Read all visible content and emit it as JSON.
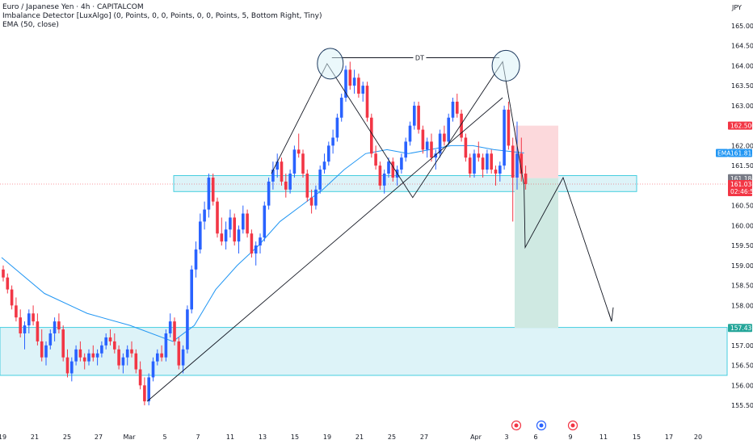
{
  "header": {
    "title": "Euro / Japanese Yen · 4h · CAPITALCOM",
    "indicator_1": "Imbalance Detector [LuxAlgo] (0, Points, 0, 0, Points, 0, 0, Points, 5, Bottom Right, Tiny)",
    "indicator_2": "EMA (50, close)"
  },
  "currency": "JPY",
  "colors": {
    "bull": "#2962ff",
    "bear": "#f23645",
    "ema": "#2196f3",
    "zone_fill": "#d8f1f7",
    "zone_stroke": "#26c6da",
    "stop_fill": "#fcd9dc",
    "target_fill": "#cfe9e2",
    "line": "#131722"
  },
  "chart_data": {
    "type": "candlestick",
    "title": "Euro / Japanese Yen · 4h · CAPITALCOM",
    "ylim": [
      155.3,
      165.2
    ],
    "y_ticks": [
      "165.000",
      "164.500",
      "164.000",
      "163.500",
      "163.000",
      "162.000",
      "161.500",
      "160.500",
      "160.000",
      "159.500",
      "159.000",
      "158.500",
      "158.000",
      "157.000",
      "156.500",
      "156.000",
      "155.500"
    ],
    "x_ticks": [
      "19",
      "21",
      "25",
      "27",
      "Mar",
      "5",
      "7",
      "11",
      "13",
      "15",
      "19",
      "21",
      "25",
      "27",
      "Apr",
      "3",
      "6",
      "9",
      "11",
      "15",
      "17",
      "20"
    ],
    "grid": false,
    "price_labels": [
      {
        "text": "162.500",
        "value": 162.5,
        "color": "#f23645"
      },
      {
        "text": "161.815",
        "value": 161.815,
        "color": "#2196f3",
        "tag": "EMA"
      },
      {
        "text": "161.184",
        "value": 161.184,
        "color": "#787b86"
      },
      {
        "text": "161.038",
        "value": 161.038,
        "color": "#f23645",
        "sub": "02:46:51"
      },
      {
        "text": "157.437",
        "value": 157.437,
        "color": "#26a69a"
      }
    ],
    "zones": [
      {
        "name": "resistance-support-zone",
        "from": 160.85,
        "to": 161.25
      },
      {
        "name": "demand-zone",
        "from": 156.25,
        "to": 157.45
      }
    ],
    "position": {
      "entry": 161.184,
      "stop": 162.5,
      "target": 157.437
    },
    "annotations": [
      {
        "text": "DT",
        "type": "double-top"
      }
    ],
    "candles": [
      [
        158.9,
        159.0,
        158.6,
        158.7
      ],
      [
        158.7,
        158.8,
        158.3,
        158.4
      ],
      [
        158.4,
        158.5,
        157.9,
        158.0
      ],
      [
        158.0,
        158.2,
        157.6,
        157.7
      ],
      [
        157.7,
        157.9,
        157.2,
        157.3
      ],
      [
        157.3,
        157.6,
        156.9,
        157.5
      ],
      [
        157.5,
        157.9,
        157.3,
        157.8
      ],
      [
        157.8,
        158.0,
        157.5,
        157.6
      ],
      [
        157.6,
        157.8,
        157.0,
        157.1
      ],
      [
        157.1,
        157.4,
        156.6,
        156.7
      ],
      [
        156.7,
        157.1,
        156.5,
        157.0
      ],
      [
        157.0,
        157.4,
        156.9,
        157.3
      ],
      [
        157.3,
        157.7,
        157.1,
        157.6
      ],
      [
        157.6,
        157.8,
        157.3,
        157.4
      ],
      [
        157.4,
        157.5,
        156.6,
        156.7
      ],
      [
        156.7,
        156.9,
        156.2,
        156.3
      ],
      [
        156.3,
        156.7,
        156.1,
        156.6
      ],
      [
        156.6,
        157.0,
        156.5,
        156.9
      ],
      [
        156.9,
        157.1,
        156.6,
        156.7
      ],
      [
        156.7,
        156.8,
        156.4,
        156.6
      ],
      [
        156.6,
        156.9,
        156.5,
        156.8
      ],
      [
        156.8,
        157.0,
        156.6,
        156.7
      ],
      [
        156.7,
        156.9,
        156.5,
        156.8
      ],
      [
        156.8,
        157.1,
        156.7,
        157.0
      ],
      [
        157.0,
        157.3,
        156.9,
        157.2
      ],
      [
        157.2,
        157.4,
        157.0,
        157.1
      ],
      [
        157.1,
        157.3,
        156.8,
        156.9
      ],
      [
        156.9,
        157.0,
        156.4,
        156.5
      ],
      [
        156.5,
        156.8,
        156.3,
        156.7
      ],
      [
        156.7,
        157.0,
        156.5,
        156.9
      ],
      [
        156.9,
        157.1,
        156.7,
        156.8
      ],
      [
        156.8,
        156.9,
        156.3,
        156.4
      ],
      [
        156.4,
        156.6,
        155.9,
        156.0
      ],
      [
        156.0,
        156.2,
        155.5,
        155.6
      ],
      [
        155.6,
        156.3,
        155.5,
        156.2
      ],
      [
        156.2,
        156.7,
        156.1,
        156.6
      ],
      [
        156.6,
        156.9,
        156.5,
        156.8
      ],
      [
        156.8,
        157.0,
        156.6,
        156.7
      ],
      [
        156.7,
        157.4,
        156.6,
        157.3
      ],
      [
        157.3,
        157.8,
        157.2,
        157.6
      ],
      [
        157.6,
        157.7,
        157.0,
        157.1
      ],
      [
        157.1,
        157.2,
        156.4,
        156.5
      ],
      [
        156.5,
        157.0,
        156.3,
        156.9
      ],
      [
        156.9,
        158.0,
        156.8,
        157.9
      ],
      [
        157.9,
        159.0,
        157.8,
        158.9
      ],
      [
        158.9,
        159.6,
        158.7,
        159.4
      ],
      [
        159.4,
        160.3,
        159.3,
        160.1
      ],
      [
        160.1,
        160.6,
        159.9,
        160.4
      ],
      [
        160.4,
        161.3,
        160.2,
        161.2
      ],
      [
        161.2,
        161.3,
        160.5,
        160.6
      ],
      [
        160.6,
        160.7,
        159.7,
        159.8
      ],
      [
        159.8,
        160.2,
        159.5,
        159.6
      ],
      [
        159.6,
        160.1,
        159.4,
        159.9
      ],
      [
        159.9,
        160.4,
        159.7,
        160.2
      ],
      [
        160.2,
        160.3,
        159.5,
        159.6
      ],
      [
        159.6,
        160.0,
        159.3,
        159.9
      ],
      [
        159.9,
        160.5,
        159.8,
        160.3
      ],
      [
        160.3,
        160.4,
        159.7,
        159.8
      ],
      [
        159.8,
        159.9,
        159.2,
        159.3
      ],
      [
        159.3,
        159.6,
        159.0,
        159.5
      ],
      [
        159.5,
        159.8,
        159.3,
        159.7
      ],
      [
        159.7,
        160.6,
        159.6,
        160.5
      ],
      [
        160.5,
        161.2,
        160.4,
        161.1
      ],
      [
        161.1,
        161.6,
        160.9,
        161.4
      ],
      [
        161.4,
        161.8,
        161.2,
        161.6
      ],
      [
        161.6,
        161.7,
        161.0,
        161.1
      ],
      [
        161.1,
        161.3,
        160.7,
        160.9
      ],
      [
        160.9,
        161.4,
        160.8,
        161.3
      ],
      [
        161.3,
        162.0,
        161.2,
        161.9
      ],
      [
        161.9,
        162.3,
        161.7,
        161.8
      ],
      [
        161.8,
        161.9,
        161.2,
        161.3
      ],
      [
        161.3,
        161.4,
        160.6,
        160.7
      ],
      [
        160.7,
        160.9,
        160.3,
        160.5
      ],
      [
        160.5,
        161.0,
        160.4,
        160.9
      ],
      [
        160.9,
        161.5,
        160.8,
        161.4
      ],
      [
        161.4,
        161.8,
        161.3,
        161.6
      ],
      [
        161.6,
        162.1,
        161.5,
        162.0
      ],
      [
        162.0,
        162.4,
        161.8,
        162.2
      ],
      [
        162.2,
        162.8,
        162.1,
        162.7
      ],
      [
        162.7,
        163.3,
        162.6,
        163.2
      ],
      [
        163.2,
        164.0,
        163.1,
        163.9
      ],
      [
        163.9,
        164.1,
        163.4,
        163.5
      ],
      [
        163.5,
        163.9,
        163.3,
        163.7
      ],
      [
        163.7,
        163.8,
        163.2,
        163.3
      ],
      [
        163.3,
        163.6,
        163.1,
        163.5
      ],
      [
        163.5,
        163.6,
        162.6,
        162.7
      ],
      [
        162.7,
        162.8,
        161.7,
        161.8
      ],
      [
        161.8,
        162.0,
        161.4,
        161.5
      ],
      [
        161.5,
        161.6,
        160.9,
        161.0
      ],
      [
        161.0,
        161.4,
        160.8,
        161.3
      ],
      [
        161.3,
        161.7,
        161.2,
        161.6
      ],
      [
        161.6,
        161.7,
        161.1,
        161.2
      ],
      [
        161.2,
        161.5,
        161.0,
        161.4
      ],
      [
        161.4,
        161.8,
        161.3,
        161.7
      ],
      [
        161.7,
        162.2,
        161.6,
        162.1
      ],
      [
        162.1,
        162.6,
        162.0,
        162.5
      ],
      [
        162.5,
        163.1,
        162.4,
        163.0
      ],
      [
        163.0,
        163.1,
        162.3,
        162.4
      ],
      [
        162.4,
        162.5,
        161.8,
        161.9
      ],
      [
        161.9,
        162.2,
        161.7,
        162.1
      ],
      [
        162.1,
        162.3,
        161.6,
        161.7
      ],
      [
        161.7,
        161.9,
        161.4,
        161.8
      ],
      [
        161.8,
        162.4,
        161.7,
        162.3
      ],
      [
        162.3,
        162.5,
        162.0,
        162.1
      ],
      [
        162.1,
        162.8,
        162.0,
        162.7
      ],
      [
        162.7,
        163.2,
        162.6,
        163.1
      ],
      [
        163.1,
        163.3,
        162.7,
        162.8
      ],
      [
        162.8,
        162.9,
        162.1,
        162.2
      ],
      [
        162.2,
        162.3,
        161.6,
        161.7
      ],
      [
        161.7,
        161.8,
        161.2,
        161.3
      ],
      [
        161.3,
        161.9,
        161.2,
        161.8
      ],
      [
        161.8,
        162.1,
        161.6,
        161.7
      ],
      [
        161.7,
        161.8,
        161.2,
        161.4
      ],
      [
        161.4,
        161.9,
        161.3,
        161.8
      ],
      [
        161.8,
        161.9,
        161.3,
        161.4
      ],
      [
        161.4,
        161.5,
        161.0,
        161.3
      ],
      [
        161.3,
        161.6,
        161.1,
        161.5
      ],
      [
        161.5,
        163.0,
        161.4,
        162.9
      ],
      [
        162.9,
        163.1,
        161.9,
        162.0
      ],
      [
        162.0,
        162.2,
        160.1,
        161.2
      ],
      [
        161.2,
        162.6,
        160.9,
        161.8
      ],
      [
        161.8,
        162.2,
        161.1,
        161.3
      ],
      [
        161.3,
        161.5,
        160.9,
        161.038
      ]
    ],
    "ema_50": [
      [
        0,
        159.2
      ],
      [
        10,
        158.3
      ],
      [
        20,
        157.8
      ],
      [
        30,
        157.5
      ],
      [
        40,
        157.1
      ],
      [
        45,
        157.5
      ],
      [
        50,
        158.4
      ],
      [
        55,
        159.0
      ],
      [
        60,
        159.5
      ],
      [
        65,
        160.1
      ],
      [
        70,
        160.5
      ],
      [
        75,
        160.9
      ],
      [
        80,
        161.4
      ],
      [
        85,
        161.8
      ],
      [
        90,
        161.9
      ],
      [
        95,
        161.8
      ],
      [
        100,
        161.9
      ],
      [
        105,
        162.0
      ],
      [
        110,
        162.0
      ],
      [
        115,
        161.9
      ],
      [
        122,
        161.815
      ]
    ]
  }
}
